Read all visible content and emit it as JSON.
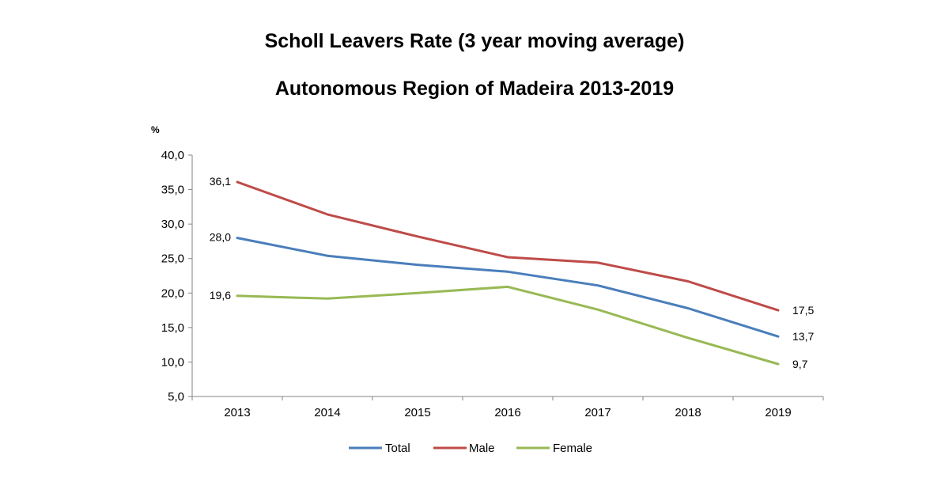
{
  "chart_data": {
    "type": "line",
    "title": "Scholl Leavers Rate (3 year moving average)",
    "subtitle": "Autonomous Region of Madeira 2013-2019",
    "ylabel": "%",
    "xlabel": "",
    "ylim": [
      5,
      40
    ],
    "ytick_values": [
      5,
      10,
      15,
      20,
      25,
      30,
      35,
      40
    ],
    "yticks": [
      "5,0",
      "10,0",
      "15,0",
      "20,0",
      "25,0",
      "30,0",
      "35,0",
      "40,0"
    ],
    "categories": [
      "2013",
      "2014",
      "2015",
      "2016",
      "2017",
      "2018",
      "2019"
    ],
    "legend_position": "bottom",
    "grid": false,
    "series": [
      {
        "name": "Total",
        "color": "#4a7ebb",
        "values": [
          28.0,
          25.4,
          24.1,
          23.1,
          21.1,
          17.8,
          13.7
        ],
        "labels": [
          {
            "index": 0,
            "text": "28,0",
            "side": "left"
          },
          {
            "index": 6,
            "text": "13,7",
            "side": "right"
          }
        ]
      },
      {
        "name": "Male",
        "color": "#be4b48",
        "values": [
          36.1,
          31.4,
          28.2,
          25.2,
          24.4,
          21.7,
          17.5
        ],
        "labels": [
          {
            "index": 0,
            "text": "36,1",
            "side": "left"
          },
          {
            "index": 6,
            "text": "17,5",
            "side": "right"
          }
        ]
      },
      {
        "name": "Female",
        "color": "#98b954",
        "values": [
          19.6,
          19.2,
          20.0,
          20.9,
          17.6,
          13.5,
          9.7
        ],
        "labels": [
          {
            "index": 0,
            "text": "19,6",
            "side": "left"
          },
          {
            "index": 6,
            "text": "9,7",
            "side": "right"
          }
        ]
      }
    ]
  }
}
